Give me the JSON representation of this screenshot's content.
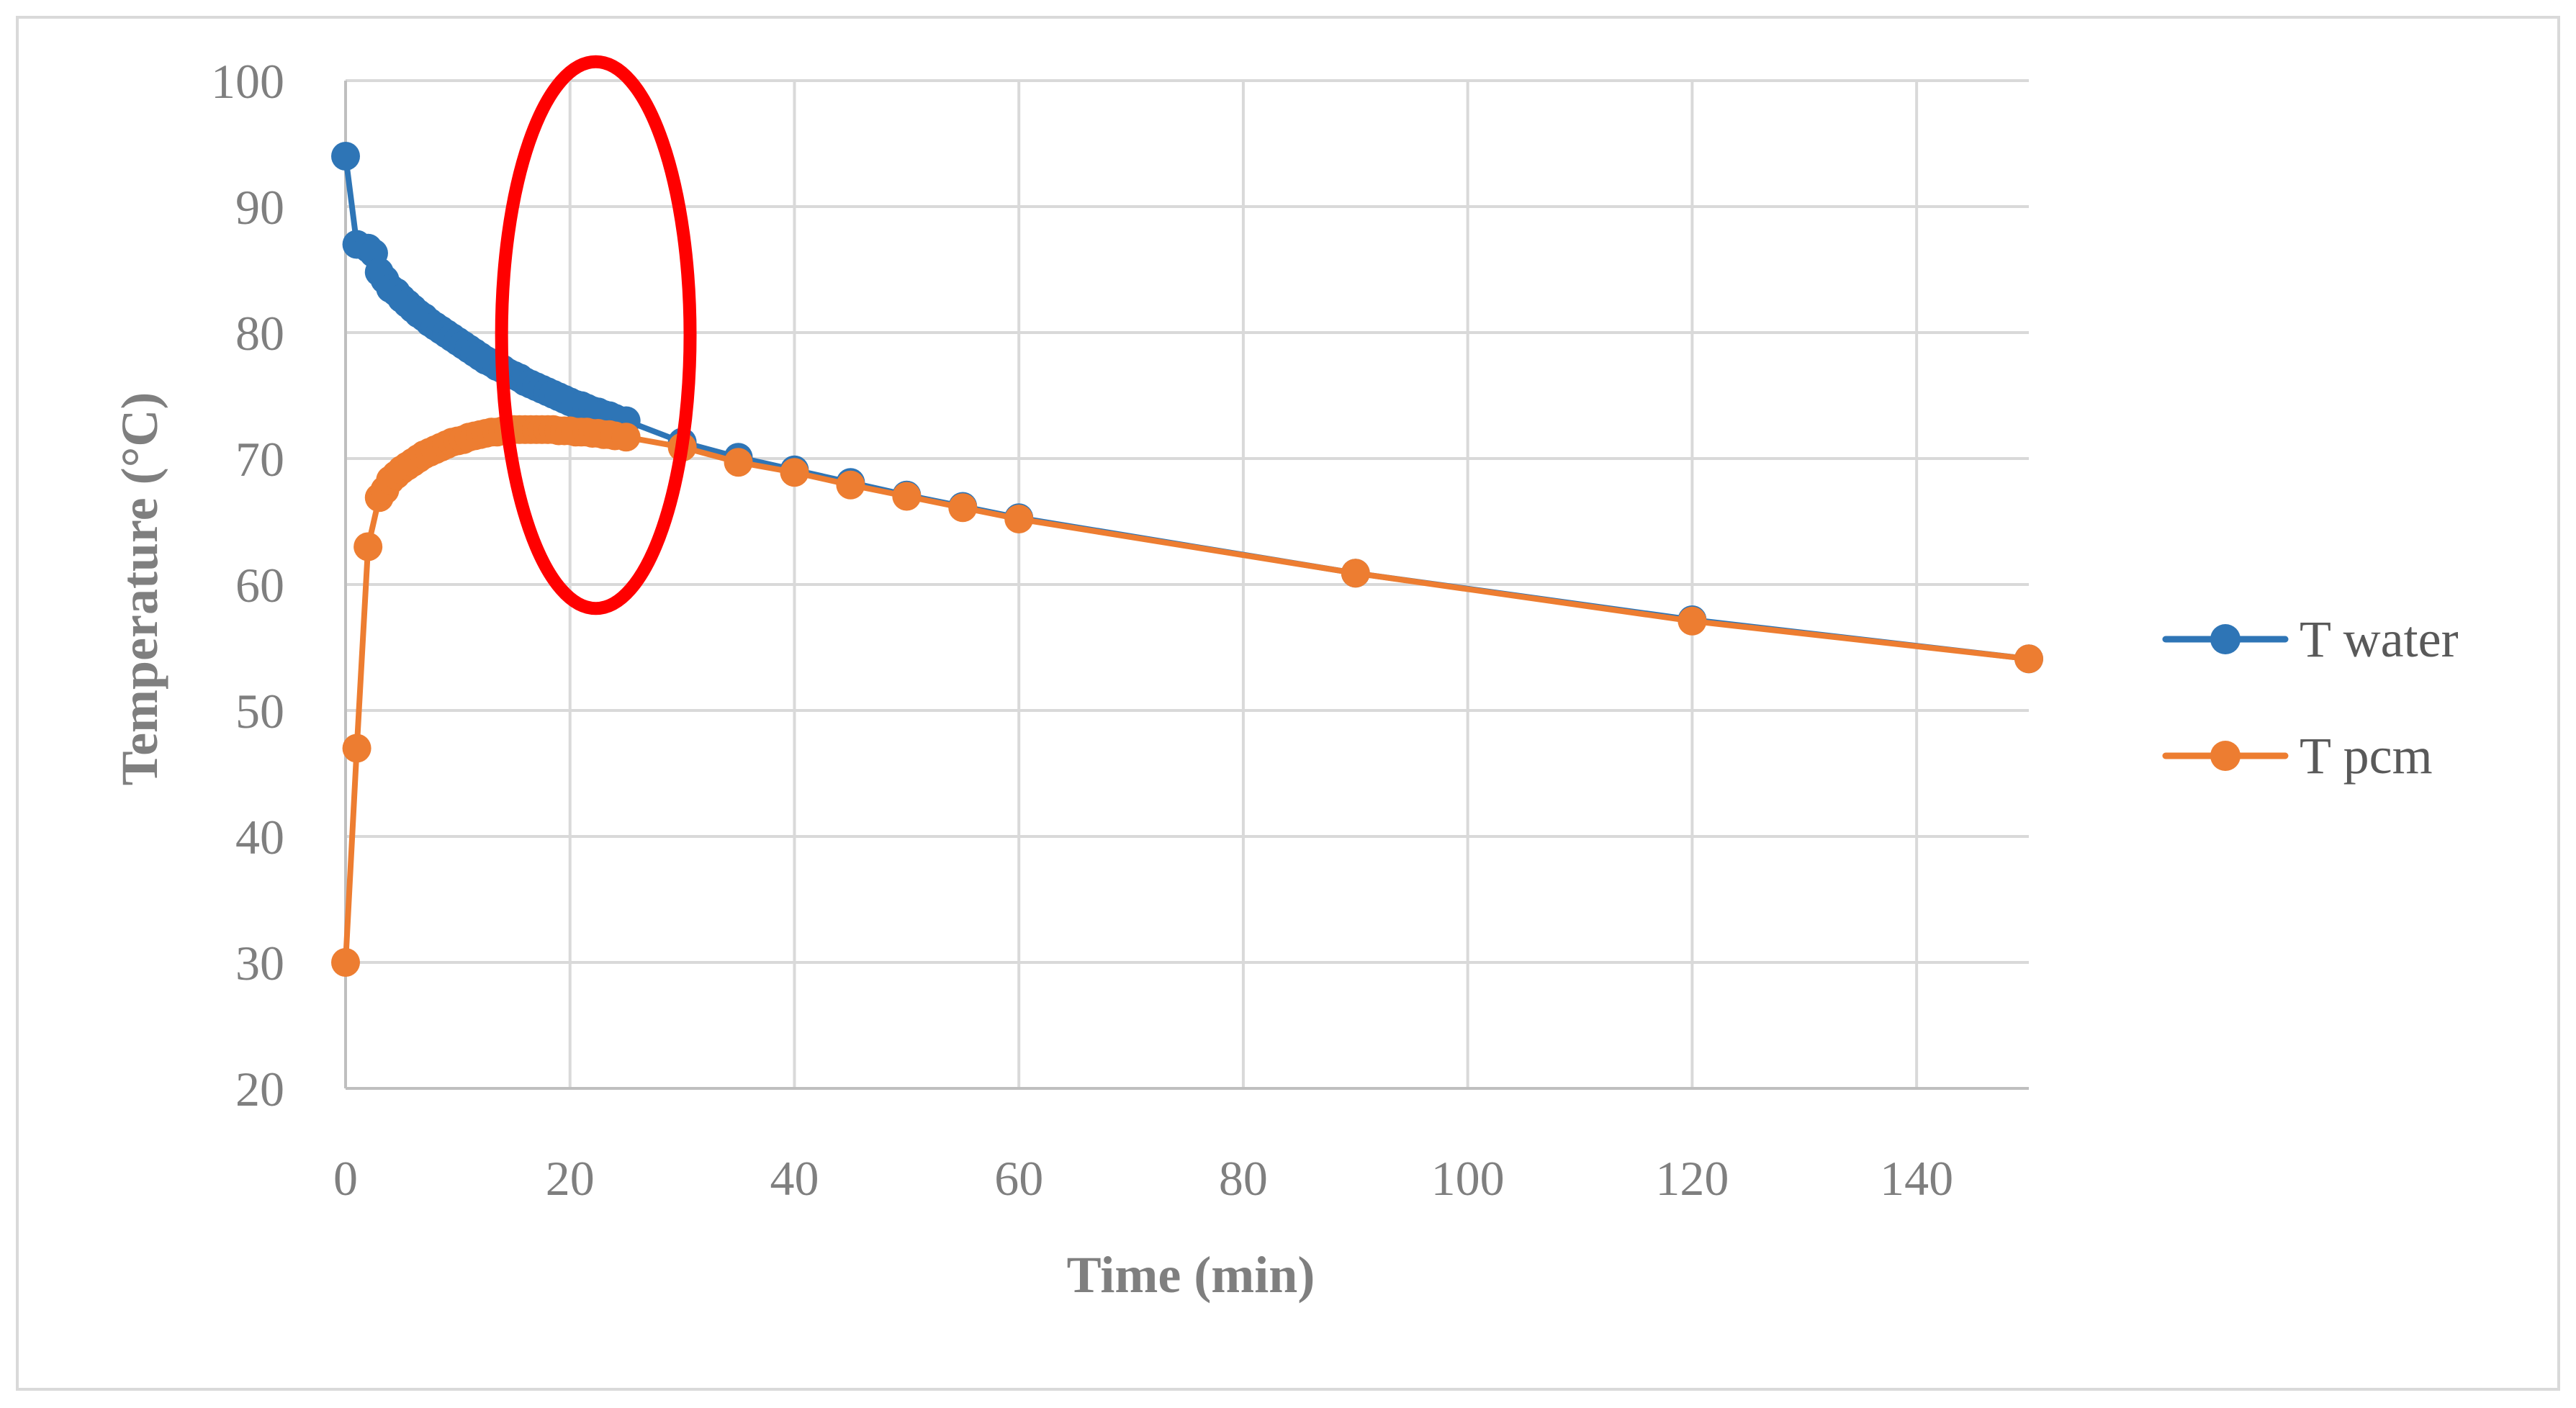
{
  "chart_data": {
    "type": "line",
    "title": "",
    "xlabel": "Time (min)",
    "ylabel": "Temperature (°C)",
    "xlim": [
      0,
      150
    ],
    "ylim": [
      20,
      100
    ],
    "x_ticks": [
      0,
      20,
      40,
      60,
      80,
      100,
      120,
      140
    ],
    "y_ticks": [
      20,
      30,
      40,
      50,
      60,
      70,
      80,
      90,
      100
    ],
    "grid": true,
    "legend_position": "right",
    "series": [
      {
        "name": "T water",
        "color": "#2e75b6",
        "points": [
          [
            0,
            94.0
          ],
          [
            1,
            87.0
          ],
          [
            2,
            86.7
          ],
          [
            2.5,
            86.3
          ],
          [
            3,
            84.8
          ],
          [
            3.5,
            84.2
          ],
          [
            4,
            83.5
          ],
          [
            4.5,
            83.2
          ],
          [
            5,
            82.7
          ],
          [
            5.5,
            82.3
          ],
          [
            6,
            81.9
          ],
          [
            6.5,
            81.5
          ],
          [
            7,
            81.2
          ],
          [
            7.5,
            80.8
          ],
          [
            8,
            80.5
          ],
          [
            8.5,
            80.2
          ],
          [
            9,
            79.9
          ],
          [
            9.5,
            79.6
          ],
          [
            10,
            79.3
          ],
          [
            10.5,
            79.0
          ],
          [
            11,
            78.7
          ],
          [
            11.5,
            78.4
          ],
          [
            12,
            78.1
          ],
          [
            12.5,
            77.8
          ],
          [
            13,
            77.6
          ],
          [
            13.5,
            77.3
          ],
          [
            14,
            77.1
          ],
          [
            14.5,
            76.8
          ],
          [
            15,
            76.6
          ],
          [
            15.5,
            76.4
          ],
          [
            16,
            76.1
          ],
          [
            16.5,
            75.9
          ],
          [
            17,
            75.7
          ],
          [
            17.5,
            75.5
          ],
          [
            18,
            75.3
          ],
          [
            18.5,
            75.1
          ],
          [
            19,
            74.9
          ],
          [
            19.5,
            74.7
          ],
          [
            20,
            74.5
          ],
          [
            20.5,
            74.3
          ],
          [
            21,
            74.2
          ],
          [
            21.5,
            74.0
          ],
          [
            22,
            73.8
          ],
          [
            22.5,
            73.7
          ],
          [
            23,
            73.5
          ],
          [
            23.5,
            73.4
          ],
          [
            24,
            73.2
          ],
          [
            25,
            73.0
          ],
          [
            30,
            71.3
          ],
          [
            35,
            70.1
          ],
          [
            40,
            69.1
          ],
          [
            45,
            68.1
          ],
          [
            50,
            67.1
          ],
          [
            55,
            66.2
          ],
          [
            60,
            65.3
          ],
          [
            90,
            60.9
          ],
          [
            120,
            57.2
          ],
          [
            150,
            54.1
          ]
        ]
      },
      {
        "name": "T pcm",
        "color": "#ed7d31",
        "points": [
          [
            0,
            30.0
          ],
          [
            1,
            47.0
          ],
          [
            2,
            63.0
          ],
          [
            3,
            66.9
          ],
          [
            3.5,
            67.5
          ],
          [
            4,
            68.3
          ],
          [
            4.5,
            68.7
          ],
          [
            5,
            69.1
          ],
          [
            5.5,
            69.4
          ],
          [
            6,
            69.7
          ],
          [
            6.5,
            70.0
          ],
          [
            7,
            70.3
          ],
          [
            7.5,
            70.5
          ],
          [
            8,
            70.7
          ],
          [
            8.5,
            70.9
          ],
          [
            9,
            71.1
          ],
          [
            9.5,
            71.3
          ],
          [
            10,
            71.4
          ],
          [
            10.5,
            71.5
          ],
          [
            11,
            71.7
          ],
          [
            11.5,
            71.8
          ],
          [
            12,
            71.9
          ],
          [
            12.5,
            72.0
          ],
          [
            13,
            72.1
          ],
          [
            13.5,
            72.1
          ],
          [
            14,
            72.2
          ],
          [
            14.5,
            72.2
          ],
          [
            15,
            72.3
          ],
          [
            15.5,
            72.3
          ],
          [
            16,
            72.3
          ],
          [
            16.5,
            72.3
          ],
          [
            17,
            72.3
          ],
          [
            17.5,
            72.3
          ],
          [
            18,
            72.3
          ],
          [
            18.5,
            72.3
          ],
          [
            19,
            72.2
          ],
          [
            19.5,
            72.2
          ],
          [
            20,
            72.2
          ],
          [
            20.5,
            72.1
          ],
          [
            21,
            72.1
          ],
          [
            21.5,
            72.1
          ],
          [
            22,
            72.0
          ],
          [
            22.5,
            72.0
          ],
          [
            23,
            71.9
          ],
          [
            23.5,
            71.9
          ],
          [
            24,
            71.8
          ],
          [
            25,
            71.7
          ],
          [
            30,
            70.9
          ],
          [
            35,
            69.7
          ],
          [
            40,
            68.9
          ],
          [
            45,
            67.9
          ],
          [
            50,
            67.0
          ],
          [
            55,
            66.1
          ],
          [
            60,
            65.2
          ],
          [
            90,
            60.9
          ],
          [
            120,
            57.1
          ],
          [
            150,
            54.1
          ]
        ]
      }
    ],
    "annotation": {
      "shape": "ellipse",
      "color": "#ff0000",
      "center": [
        22.3,
        79.8
      ],
      "radius_x": 8.4,
      "radius_y": 21.7
    }
  }
}
